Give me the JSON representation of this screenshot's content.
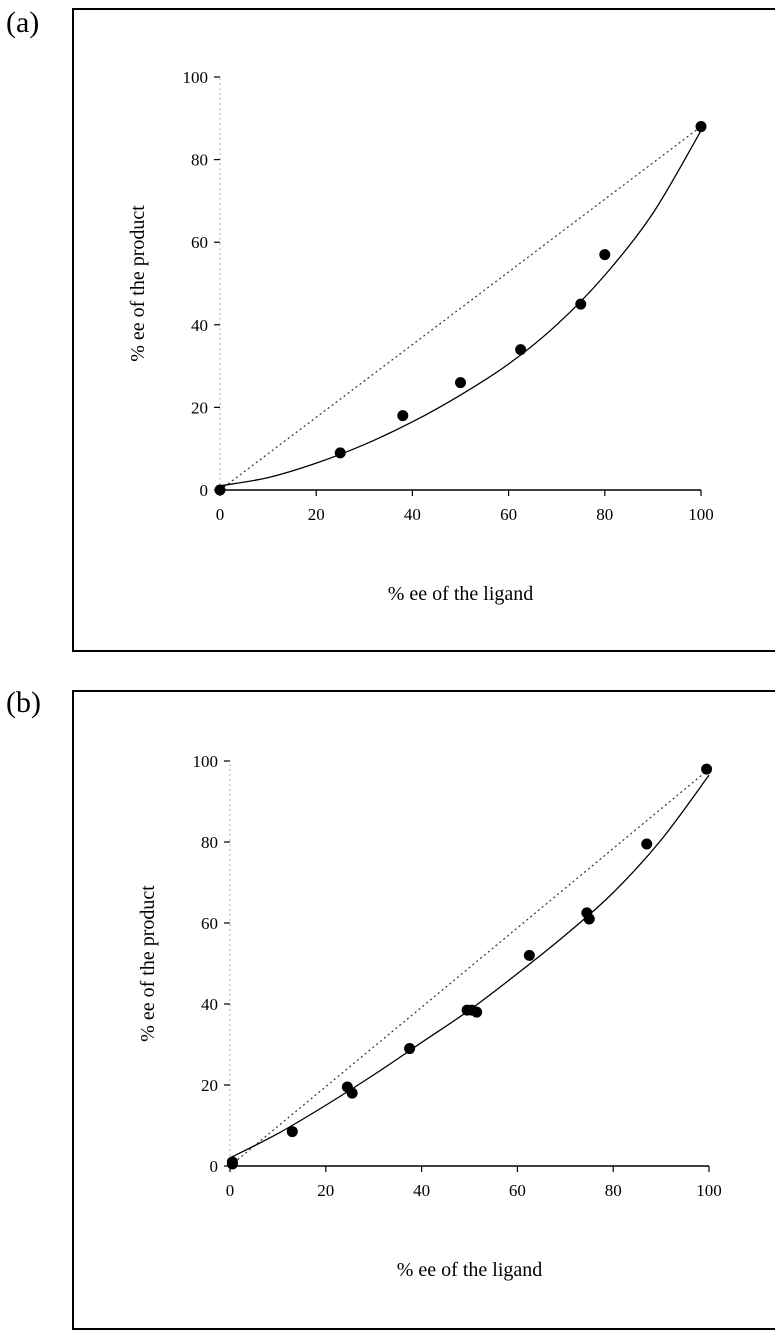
{
  "panels": [
    {
      "label": "(a)"
    },
    {
      "label": "(b)"
    }
  ],
  "chart_data": [
    {
      "type": "scatter",
      "xlabel": "% ee of the ligand",
      "ylabel": "% ee of the product",
      "xlim": [
        0,
        100
      ],
      "ylim": [
        0,
        100
      ],
      "xticks": [
        "0",
        "20",
        "40",
        "60",
        "80",
        "100"
      ],
      "yticks": [
        "0",
        "20",
        "40",
        "60",
        "80",
        "100"
      ],
      "series": [
        {
          "values": [
            {
              "x": 0,
              "y": 0
            },
            {
              "x": 25,
              "y": 9
            },
            {
              "x": 38,
              "y": 18
            },
            {
              "x": 50,
              "y": 26
            },
            {
              "x": 62.5,
              "y": 34
            },
            {
              "x": 75,
              "y": 45
            },
            {
              "x": 80,
              "y": 57
            },
            {
              "x": 100,
              "y": 88
            }
          ]
        }
      ],
      "linear_reference": {
        "style": "dotted",
        "from": [
          0,
          0
        ],
        "to": [
          100,
          88
        ]
      },
      "fit_curve": {
        "style": "solid",
        "points": [
          [
            0,
            1
          ],
          [
            10,
            3
          ],
          [
            20,
            6.5
          ],
          [
            30,
            11
          ],
          [
            40,
            16.5
          ],
          [
            50,
            23
          ],
          [
            60,
            30.5
          ],
          [
            70,
            40
          ],
          [
            80,
            52
          ],
          [
            90,
            67
          ],
          [
            100,
            87
          ]
        ]
      },
      "grid": false
    },
    {
      "type": "scatter",
      "xlabel": "% ee of the ligand",
      "ylabel": "% ee of the product",
      "xlim": [
        0,
        100
      ],
      "ylim": [
        0,
        100
      ],
      "xticks": [
        "0",
        "20",
        "40",
        "60",
        "80",
        "100"
      ],
      "yticks": [
        "0",
        "20",
        "40",
        "60",
        "80",
        "100"
      ],
      "series": [
        {
          "values": [
            {
              "x": 0.5,
              "y": 1
            },
            {
              "x": 0.5,
              "y": 0.5
            },
            {
              "x": 13,
              "y": 8.5
            },
            {
              "x": 24.5,
              "y": 19.5
            },
            {
              "x": 25.5,
              "y": 18
            },
            {
              "x": 37.5,
              "y": 29
            },
            {
              "x": 49.5,
              "y": 38.5
            },
            {
              "x": 50.5,
              "y": 38.5
            },
            {
              "x": 51.5,
              "y": 38
            },
            {
              "x": 62.5,
              "y": 52
            },
            {
              "x": 74.5,
              "y": 62.5
            },
            {
              "x": 75,
              "y": 61
            },
            {
              "x": 87,
              "y": 79.5
            },
            {
              "x": 99.5,
              "y": 98
            }
          ]
        }
      ],
      "linear_reference": {
        "style": "dotted",
        "from": [
          0,
          0
        ],
        "to": [
          100,
          98
        ]
      },
      "fit_curve": {
        "style": "solid",
        "points": [
          [
            0,
            2
          ],
          [
            10,
            8
          ],
          [
            20,
            15
          ],
          [
            30,
            22.5
          ],
          [
            40,
            30.5
          ],
          [
            50,
            38.5
          ],
          [
            60,
            47.5
          ],
          [
            70,
            57
          ],
          [
            80,
            67.5
          ],
          [
            90,
            80.5
          ],
          [
            100,
            96.5
          ]
        ]
      },
      "grid": false
    }
  ]
}
